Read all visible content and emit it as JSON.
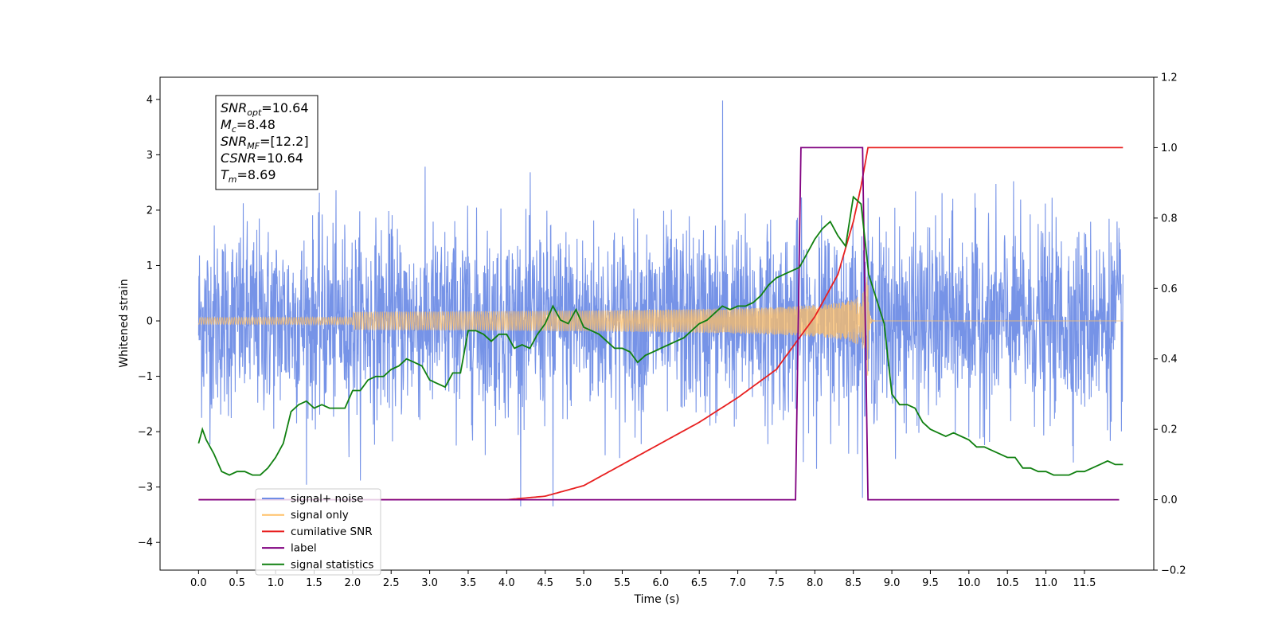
{
  "chart_data": {
    "type": "line",
    "xlabel": "Time (s)",
    "ylabel": "Whitened strain",
    "xlim": [
      -0.5,
      12.4
    ],
    "ylim": [
      -4.5,
      4.4
    ],
    "y2lim": [
      -0.2,
      1.2
    ],
    "xticks": [
      "0.0",
      "0.5",
      "1.0",
      "1.5",
      "2.0",
      "2.5",
      "3.0",
      "3.5",
      "4.0",
      "4.5",
      "5.0",
      "5.5",
      "6.0",
      "6.5",
      "7.0",
      "7.5",
      "8.0",
      "8.5",
      "9.0",
      "9.5",
      "10.0",
      "10.5",
      "11.0",
      "11.5"
    ],
    "yticks": [
      "-4",
      "-3",
      "-2",
      "-1",
      "0",
      "1",
      "2",
      "3",
      "4"
    ],
    "y2ticks": [
      "-0.2",
      "0.0",
      "0.2",
      "0.4",
      "0.6",
      "0.8",
      "1.0",
      "1.2"
    ],
    "legend_position": "lower-left",
    "annotations": [
      {
        "base": "SNR",
        "sub": "opt",
        "value": "=10.64"
      },
      {
        "base": "M",
        "sub": "c",
        "value": "=8.48"
      },
      {
        "base": "SNR",
        "sub": "MF",
        "value": "=[12.2]"
      },
      {
        "base": "CSNR",
        "sub": "",
        "value": "=10.64"
      },
      {
        "base": "T",
        "sub": "m",
        "value": "=8.69"
      }
    ],
    "series": [
      {
        "name": "signal+ noise",
        "color": "#6f8de6",
        "axis": "left",
        "kind": "noise",
        "x_range": [
          0.0,
          12.0
        ],
        "std": 0.85,
        "min": -3.35,
        "max": 3.98
      },
      {
        "name": "signal only",
        "color": "#ffbf66",
        "axis": "left",
        "kind": "chirp",
        "x_range": [
          0.0,
          8.69
        ],
        "peak_amplitude": 1.1,
        "merger_time": 8.69
      },
      {
        "name": "cumilative SNR",
        "color": "#e82020",
        "axis": "right",
        "x": [
          0.0,
          4.0,
          4.5,
          5.0,
          5.5,
          6.0,
          6.5,
          7.0,
          7.5,
          8.0,
          8.3,
          8.5,
          8.6,
          8.69,
          12.0
        ],
        "y": [
          0.0,
          0.0,
          0.01,
          0.04,
          0.1,
          0.16,
          0.22,
          0.29,
          0.37,
          0.52,
          0.64,
          0.79,
          0.89,
          1.0,
          1.0
        ]
      },
      {
        "name": "label",
        "color": "#800080",
        "axis": "right",
        "x": [
          0.0,
          7.75,
          7.82,
          8.62,
          8.69,
          11.95
        ],
        "y": [
          0.0,
          0.0,
          1.0,
          1.0,
          0.0,
          0.0
        ]
      },
      {
        "name": "signal statistics",
        "color": "#108010",
        "axis": "right",
        "x": [
          0.0,
          0.05,
          0.1,
          0.2,
          0.3,
          0.4,
          0.5,
          0.6,
          0.7,
          0.8,
          0.9,
          1.0,
          1.1,
          1.2,
          1.3,
          1.4,
          1.5,
          1.6,
          1.7,
          1.8,
          1.9,
          2.0,
          2.1,
          2.2,
          2.3,
          2.4,
          2.5,
          2.6,
          2.7,
          2.8,
          2.9,
          3.0,
          3.1,
          3.2,
          3.3,
          3.4,
          3.5,
          3.6,
          3.7,
          3.8,
          3.9,
          4.0,
          4.1,
          4.2,
          4.3,
          4.4,
          4.5,
          4.6,
          4.7,
          4.8,
          4.9,
          5.0,
          5.1,
          5.2,
          5.3,
          5.4,
          5.5,
          5.6,
          5.7,
          5.8,
          5.9,
          6.0,
          6.1,
          6.2,
          6.3,
          6.4,
          6.5,
          6.6,
          6.7,
          6.8,
          6.9,
          7.0,
          7.1,
          7.2,
          7.3,
          7.4,
          7.5,
          7.6,
          7.7,
          7.8,
          7.9,
          8.0,
          8.1,
          8.2,
          8.3,
          8.4,
          8.5,
          8.6,
          8.7,
          8.8,
          8.9,
          9.0,
          9.1,
          9.2,
          9.3,
          9.4,
          9.5,
          9.6,
          9.7,
          9.8,
          9.9,
          10.0,
          10.1,
          10.2,
          10.3,
          10.4,
          10.5,
          10.6,
          10.7,
          10.8,
          10.9,
          11.0,
          11.1,
          11.2,
          11.3,
          11.4,
          11.5,
          11.6,
          11.7,
          11.8,
          11.9,
          12.0
        ],
        "y": [
          0.16,
          0.2,
          0.17,
          0.13,
          0.08,
          0.07,
          0.08,
          0.08,
          0.07,
          0.07,
          0.09,
          0.12,
          0.16,
          0.25,
          0.27,
          0.28,
          0.26,
          0.27,
          0.26,
          0.26,
          0.26,
          0.31,
          0.31,
          0.34,
          0.35,
          0.35,
          0.37,
          0.38,
          0.4,
          0.39,
          0.38,
          0.34,
          0.33,
          0.32,
          0.36,
          0.36,
          0.48,
          0.48,
          0.47,
          0.45,
          0.47,
          0.47,
          0.43,
          0.44,
          0.43,
          0.47,
          0.5,
          0.55,
          0.51,
          0.5,
          0.54,
          0.49,
          0.48,
          0.47,
          0.45,
          0.43,
          0.43,
          0.42,
          0.39,
          0.41,
          0.42,
          0.43,
          0.44,
          0.45,
          0.46,
          0.48,
          0.5,
          0.51,
          0.53,
          0.55,
          0.54,
          0.55,
          0.55,
          0.56,
          0.58,
          0.61,
          0.63,
          0.64,
          0.65,
          0.66,
          0.7,
          0.74,
          0.77,
          0.79,
          0.75,
          0.72,
          0.86,
          0.84,
          0.64,
          0.57,
          0.5,
          0.3,
          0.27,
          0.27,
          0.26,
          0.22,
          0.2,
          0.19,
          0.18,
          0.19,
          0.18,
          0.17,
          0.15,
          0.15,
          0.14,
          0.13,
          0.12,
          0.12,
          0.09,
          0.09,
          0.08,
          0.08,
          0.07,
          0.07,
          0.07,
          0.08,
          0.08,
          0.09,
          0.1,
          0.11,
          0.1,
          0.1
        ]
      }
    ],
    "legend_entries": [
      {
        "label": "signal+ noise",
        "color": "#6f8de6"
      },
      {
        "label": "signal only",
        "color": "#ffbf66"
      },
      {
        "label": "cumilative SNR",
        "color": "#e82020"
      },
      {
        "label": "label",
        "color": "#800080"
      },
      {
        "label": "signal statistics",
        "color": "#108010"
      }
    ]
  }
}
